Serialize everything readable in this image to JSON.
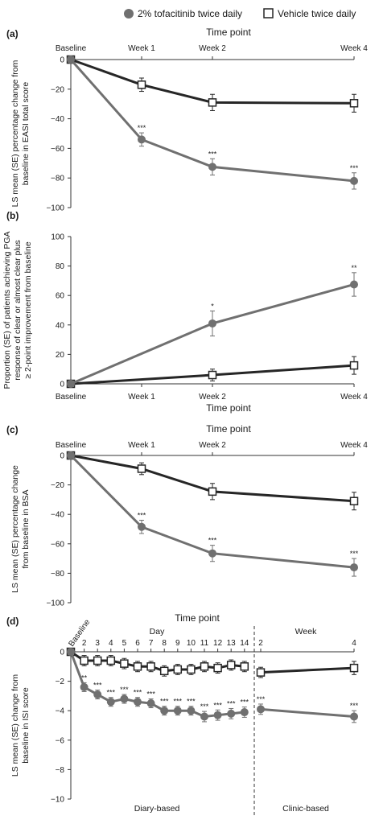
{
  "legend": {
    "tofacitinib": "2% tofacitinib twice daily",
    "vehicle": "Vehicle twice daily"
  },
  "colors": {
    "tofacitinib": "#707070",
    "vehicle": "#262626"
  },
  "chart_data": [
    {
      "type": "line",
      "panel": "(a)",
      "title": "",
      "xlabel": "Time point",
      "xlabel_position": "top",
      "ylabel": [
        "LS mean (SE) percentage change from",
        "baseline in EASI total score"
      ],
      "categories": [
        "Baseline",
        "Week 1",
        "Week 2",
        "Week 4"
      ],
      "x": [
        0,
        1,
        2,
        4
      ],
      "ylim": [
        -100,
        0
      ],
      "yticks": [
        0,
        -20,
        -40,
        -60,
        -80,
        -100
      ],
      "series": [
        {
          "name": "2% tofacitinib twice daily",
          "values": [
            0,
            -54,
            -72.5,
            -82
          ],
          "errors": [
            0,
            4.5,
            5.5,
            5.5
          ],
          "significance": [
            "",
            "***",
            "***",
            "***"
          ]
        },
        {
          "name": "Vehicle twice daily",
          "values": [
            0,
            -17,
            -29,
            -29.5
          ],
          "errors": [
            0,
            4.5,
            5.5,
            6
          ],
          "significance": [
            "",
            "",
            "",
            ""
          ]
        }
      ]
    },
    {
      "type": "line",
      "panel": "(b)",
      "title": "",
      "xlabel": "Time point",
      "xlabel_position": "bottom",
      "ylabel": [
        "Proportion (SE) of patients achieving PGA",
        "response of clear or almost clear plus",
        "≥ 2-point improvement from baseline"
      ],
      "categories": [
        "Baseline",
        "Week 1",
        "Week 2",
        "Week 4"
      ],
      "x": [
        0,
        1,
        2,
        4
      ],
      "ylim": [
        0,
        100
      ],
      "yticks": [
        0,
        20,
        40,
        60,
        80,
        100
      ],
      "series": [
        {
          "name": "2% tofacitinib twice daily",
          "values": [
            0,
            null,
            41,
            67.5
          ],
          "errors": [
            0,
            null,
            8.5,
            8
          ],
          "significance": [
            "",
            "",
            "*",
            "**"
          ]
        },
        {
          "name": "Vehicle twice daily",
          "values": [
            0,
            null,
            6,
            12.5
          ],
          "errors": [
            0,
            null,
            4,
            6
          ],
          "significance": [
            "",
            "",
            "",
            ""
          ]
        }
      ]
    },
    {
      "type": "line",
      "panel": "(c)",
      "title": "",
      "xlabel": "Time point",
      "xlabel_position": "top",
      "ylabel": [
        "LS mean (SE) percentage change",
        "from baseline in BSA"
      ],
      "categories": [
        "Baseline",
        "Week 1",
        "Week 2",
        "Week 4"
      ],
      "x": [
        0,
        1,
        2,
        4
      ],
      "ylim": [
        -100,
        0
      ],
      "yticks": [
        0,
        -20,
        -40,
        -60,
        -80,
        -100
      ],
      "series": [
        {
          "name": "2% tofacitinib twice daily",
          "values": [
            0,
            -48.5,
            -66.5,
            -76
          ],
          "errors": [
            0,
            4.5,
            5.5,
            6
          ],
          "significance": [
            "",
            "***",
            "***",
            "***"
          ]
        },
        {
          "name": "Vehicle twice daily",
          "values": [
            0,
            -9,
            -24.5,
            -31
          ],
          "errors": [
            0,
            4,
            5.5,
            6
          ],
          "significance": [
            "",
            "",
            "",
            ""
          ]
        }
      ]
    },
    {
      "type": "line",
      "panel": "(d)",
      "title": "",
      "xlabel": "Time point",
      "xlabel_position": "top",
      "ylabel": [
        "LS mean (SE) change from",
        "baseline in ISI score"
      ],
      "group_labels": {
        "day": "Day",
        "week": "Week"
      },
      "region_labels": {
        "diary": "Diary-based",
        "clinic": "Clinic-based"
      },
      "ylim": [
        -10,
        0
      ],
      "yticks": [
        0,
        -2,
        -4,
        -6,
        -8,
        -10
      ],
      "diary": {
        "categories": [
          "Baseline",
          "2",
          "3",
          "4",
          "5",
          "6",
          "7",
          "8",
          "9",
          "10",
          "11",
          "12",
          "13",
          "14"
        ],
        "series": [
          {
            "name": "2% tofacitinib twice daily",
            "values": [
              0,
              -2.4,
              -2.9,
              -3.4,
              -3.2,
              -3.4,
              -3.5,
              -4.0,
              -4.0,
              -4.0,
              -4.4,
              -4.3,
              -4.2,
              -4.1
            ],
            "errors": [
              0,
              0.3,
              0.3,
              0.3,
              0.3,
              0.3,
              0.3,
              0.3,
              0.3,
              0.3,
              0.35,
              0.35,
              0.35,
              0.35
            ],
            "significance": [
              "",
              "**",
              "***",
              "***",
              "***",
              "***",
              "***",
              "***",
              "***",
              "***",
              "***",
              "***",
              "***",
              "***"
            ]
          },
          {
            "name": "Vehicle twice daily",
            "values": [
              0,
              -0.6,
              -0.6,
              -0.6,
              -0.8,
              -1.0,
              -1.0,
              -1.3,
              -1.2,
              -1.2,
              -1.0,
              -1.1,
              -0.9,
              -1.0
            ],
            "errors": [
              0,
              0.35,
              0.35,
              0.35,
              0.35,
              0.35,
              0.35,
              0.35,
              0.35,
              0.35,
              0.35,
              0.35,
              0.35,
              0.35
            ],
            "significance": [
              "",
              "",
              "",
              "",
              "",
              "",
              "",
              "",
              "",
              "",
              "",
              "",
              "",
              ""
            ]
          }
        ]
      },
      "clinic": {
        "categories": [
          "2",
          "4"
        ],
        "series": [
          {
            "name": "2% tofacitinib twice daily",
            "values": [
              -3.9,
              -4.4
            ],
            "errors": [
              0.35,
              0.4
            ],
            "significance": [
              "***",
              "***"
            ]
          },
          {
            "name": "Vehicle twice daily",
            "values": [
              -1.4,
              -1.1
            ],
            "errors": [
              0.35,
              0.45
            ],
            "significance": [
              "",
              ""
            ]
          }
        ]
      }
    }
  ]
}
